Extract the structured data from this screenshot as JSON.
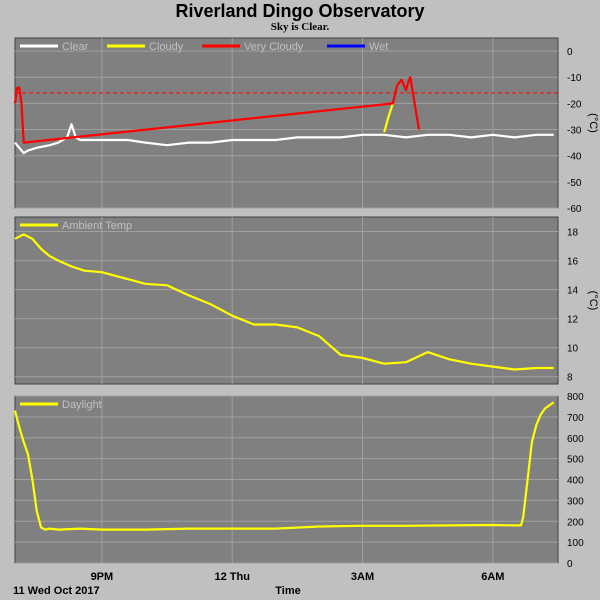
{
  "title": "Riverland Dingo Observatory",
  "subtitle": "Sky is Clear.",
  "chart_data": [
    {
      "type": "line",
      "panel": "sky",
      "ylabel": "(°C)",
      "ylim": [
        -60,
        5
      ],
      "yticks": [
        0,
        -10,
        -20,
        -30,
        -40,
        -50,
        -60
      ],
      "threshold": -16,
      "threshold_color": "#ff0000",
      "legend": [
        {
          "label": "Clear",
          "color": "#ffffff"
        },
        {
          "label": "Cloudy",
          "color": "#ffff00"
        },
        {
          "label": "Very Cloudy",
          "color": "#ff0000"
        },
        {
          "label": "Wet",
          "color": "#0000ff"
        }
      ],
      "series": [
        {
          "name": "Clear",
          "color": "#ffffff",
          "x": [
            0,
            0.1,
            0.2,
            0.3,
            0.5,
            0.8,
            1.0,
            1.2,
            1.3,
            1.4,
            1.5,
            1.8,
            2.2,
            2.6,
            3.0,
            3.5,
            4.0,
            4.5,
            5.0,
            5.5,
            6.0,
            6.5,
            7.0,
            7.5,
            8.0,
            8.5,
            9.0,
            9.5,
            10.0,
            10.5,
            11.0,
            11.5,
            12.0,
            12.4
          ],
          "y": [
            -35,
            -37,
            -39,
            -38,
            -37,
            -36,
            -35,
            -33,
            -28,
            -33,
            -34,
            -34,
            -34,
            -34,
            -35,
            -36,
            -35,
            -35,
            -34,
            -34,
            -34,
            -33,
            -33,
            -33,
            -32,
            -32,
            -33,
            -32,
            -32,
            -33,
            -32,
            -33,
            -32,
            -32
          ]
        },
        {
          "name": "Cloudy",
          "color": "#ffff00",
          "x": [
            8.5,
            8.6,
            8.7
          ],
          "y": [
            -31,
            -25,
            -20
          ]
        },
        {
          "name": "Very Cloudy",
          "color": "#ff0000",
          "x": [
            0,
            0.05,
            0.1,
            0.15,
            0.2,
            8.7,
            8.8,
            8.9,
            9.0,
            9.05,
            9.1,
            9.2,
            9.3
          ],
          "y": [
            -20,
            -14,
            -14,
            -20,
            -35,
            -20,
            -13,
            -11,
            -15,
            -12,
            -10,
            -20,
            -30
          ]
        }
      ]
    },
    {
      "type": "line",
      "panel": "ambient",
      "ylabel": "(°C)",
      "ylim": [
        7.5,
        19
      ],
      "yticks": [
        18,
        16,
        14,
        12,
        10,
        8
      ],
      "legend": [
        {
          "label": "Ambient Temp",
          "color": "#ffff00"
        }
      ],
      "series": [
        {
          "name": "Ambient Temp",
          "color": "#ffff00",
          "x": [
            0,
            0.2,
            0.4,
            0.6,
            0.8,
            1.0,
            1.3,
            1.6,
            2.0,
            2.5,
            3.0,
            3.5,
            4.0,
            4.5,
            5.0,
            5.5,
            6.0,
            6.5,
            7.0,
            7.5,
            8.0,
            8.5,
            9.0,
            9.5,
            10.0,
            10.5,
            11.0,
            11.5,
            12.0,
            12.4
          ],
          "y": [
            17.5,
            17.8,
            17.5,
            16.8,
            16.3,
            16.0,
            15.6,
            15.3,
            15.2,
            14.8,
            14.4,
            14.3,
            13.6,
            13.0,
            12.2,
            11.6,
            11.6,
            11.4,
            10.8,
            9.5,
            9.3,
            8.9,
            9.0,
            9.7,
            9.2,
            8.9,
            8.7,
            8.5,
            8.6,
            8.6
          ]
        }
      ]
    },
    {
      "type": "line",
      "panel": "daylight",
      "ylabel": "",
      "ylim": [
        0,
        800
      ],
      "yticks": [
        800,
        700,
        600,
        500,
        400,
        300,
        200,
        100,
        0
      ],
      "legend": [
        {
          "label": "Daylight",
          "color": "#ffff00"
        }
      ],
      "series": [
        {
          "name": "Daylight",
          "color": "#ffff00",
          "x": [
            0,
            0.1,
            0.2,
            0.3,
            0.4,
            0.5,
            0.6,
            0.7,
            0.8,
            1.0,
            1.5,
            2.0,
            3.0,
            4.0,
            5.0,
            6.0,
            7.0,
            8.0,
            9.0,
            10.0,
            11.0,
            11.5,
            11.65,
            11.7,
            11.8,
            11.9,
            12.0,
            12.1,
            12.2,
            12.3,
            12.4
          ],
          "y": [
            730,
            650,
            580,
            520,
            400,
            250,
            170,
            160,
            165,
            160,
            165,
            160,
            160,
            165,
            165,
            165,
            175,
            178,
            178,
            180,
            182,
            180,
            180,
            220,
            400,
            580,
            660,
            710,
            740,
            755,
            770
          ]
        }
      ]
    }
  ],
  "xaxis": {
    "xlim": [
      0,
      12.5
    ],
    "ticks": [
      {
        "x": 2.0,
        "label": "9PM"
      },
      {
        "x": 5.0,
        "label": "12 Thu"
      },
      {
        "x": 8.0,
        "label": "3AM"
      },
      {
        "x": 11.0,
        "label": "6AM"
      }
    ],
    "xlabel": "Time",
    "date_label": "11 Wed Oct 2017"
  },
  "colors": {
    "background": "#c0c0c0",
    "plot_background": "#808080",
    "grid": "#a0a0a0",
    "text": "#000000"
  }
}
